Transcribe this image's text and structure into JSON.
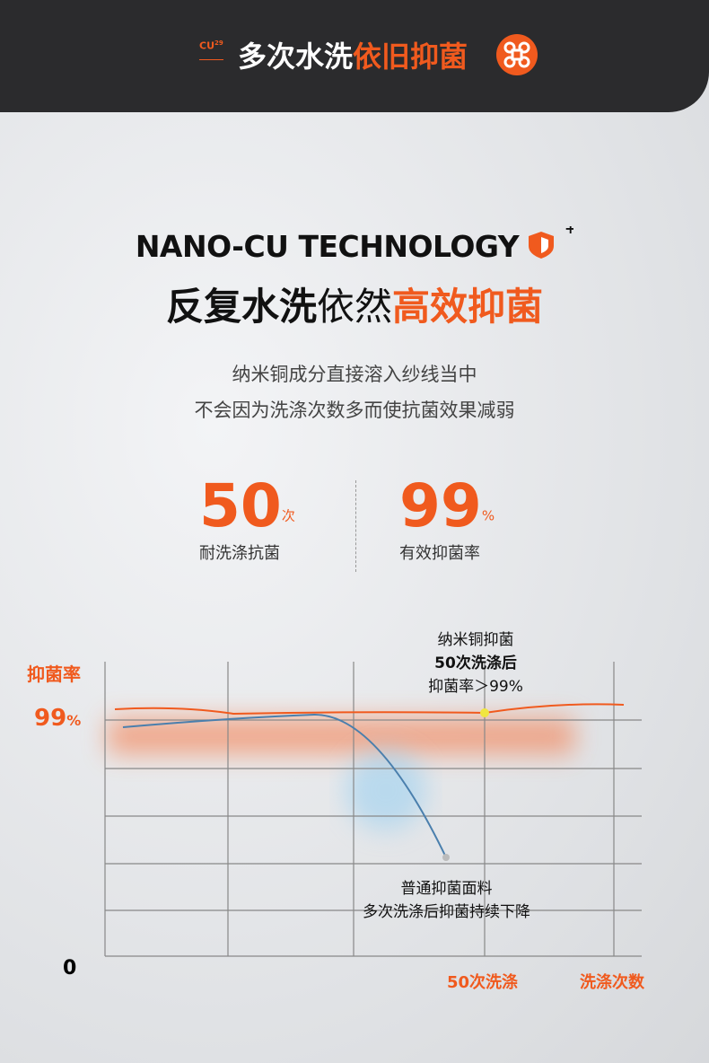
{
  "header": {
    "badge": "CU",
    "badge_sup": "29",
    "title_dark": "多次水洗",
    "title_accent": "依旧抑菌"
  },
  "headline": {
    "title": "NANO-CU TECHNOLOGY",
    "sub_dark": "反复水洗",
    "sub_light": "依然",
    "sub_accent": "高效抑菌"
  },
  "description": [
    "纳米铜成分直接溶入纱线当中",
    "不会因为洗涤次数多而使抗菌效果减弱"
  ],
  "stats": [
    {
      "value": "50",
      "unit": "次",
      "label": "耐洗涤抗菌"
    },
    {
      "value": "99",
      "unit": "%",
      "label": "有效抑菌率"
    }
  ],
  "chart": {
    "y_label": "抑菌率",
    "y_top": "99",
    "y_top_unit": "%",
    "y_zero": "0",
    "x_mark": "50次洗涤",
    "x_label": "洗涤次数",
    "note_top": [
      "纳米铜抑菌",
      "50次洗涤后",
      "抑菌率＞99%"
    ],
    "note_bottom": [
      "普通抑菌面料",
      "多次洗涤后抑菌持续下降"
    ]
  }
}
